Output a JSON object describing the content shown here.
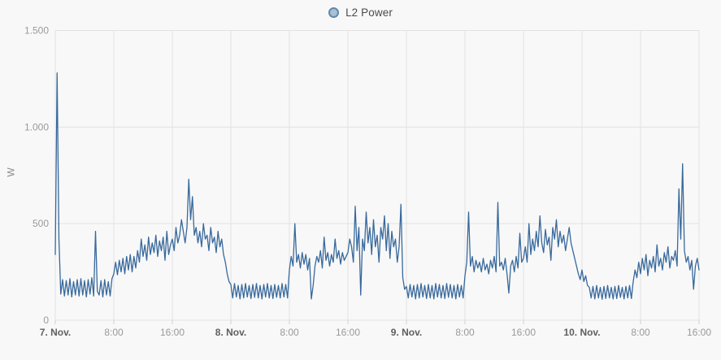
{
  "legend": {
    "marker_fill": "#a9c0d5",
    "marker_border": "#6288ac"
  },
  "colors": {
    "background": "#f8f8f8",
    "grid": "#e2e2e2",
    "tick": "#cfcfcf",
    "y_tick_label": "#9a9a9a",
    "x_time_label": "#999999",
    "x_day_label": "#5f5f5f",
    "series_line": "#38699c"
  },
  "chart_data": {
    "type": "line",
    "title": "L2 Power",
    "xlabel": "",
    "ylabel": "W",
    "ylim": [
      0,
      1500
    ],
    "grid": true,
    "legend_position": "top-center",
    "y_ticks": [
      {
        "value": 0,
        "label": "0"
      },
      {
        "value": 500,
        "label": "500"
      },
      {
        "value": 1000,
        "label": "1.000"
      },
      {
        "value": 1500,
        "label": "1.500"
      }
    ],
    "x_range_hours": [
      0,
      88
    ],
    "x_ticks": [
      {
        "hour": 0,
        "label": "7. Nov.",
        "emphasis": true
      },
      {
        "hour": 8,
        "label": "8:00",
        "emphasis": false
      },
      {
        "hour": 16,
        "label": "16:00",
        "emphasis": false
      },
      {
        "hour": 24,
        "label": "8. Nov.",
        "emphasis": true
      },
      {
        "hour": 32,
        "label": "8:00",
        "emphasis": false
      },
      {
        "hour": 40,
        "label": "16:00",
        "emphasis": false
      },
      {
        "hour": 48,
        "label": "9. Nov.",
        "emphasis": true
      },
      {
        "hour": 56,
        "label": "8:00",
        "emphasis": false
      },
      {
        "hour": 64,
        "label": "16:00",
        "emphasis": false
      },
      {
        "hour": 72,
        "label": "10. Nov.",
        "emphasis": true
      },
      {
        "hour": 80,
        "label": "8:00",
        "emphasis": false
      },
      {
        "hour": 88,
        "label": "16:00",
        "emphasis": false
      }
    ],
    "series": [
      {
        "name": "L2 Power",
        "unit": "W",
        "color": "#38699c",
        "x_start_hours": 0,
        "interval_hours": 0.25,
        "values_w": [
          340,
          1280,
          420,
          135,
          210,
          125,
          205,
          130,
          215,
          120,
          200,
          130,
          210,
          125,
          215,
          130,
          205,
          120,
          210,
          135,
          220,
          125,
          460,
          150,
          130,
          205,
          120,
          210,
          130,
          200,
          125,
          215,
          240,
          300,
          235,
          310,
          250,
          320,
          240,
          330,
          260,
          340,
          250,
          330,
          270,
          360,
          300,
          420,
          330,
          390,
          310,
          430,
          340,
          400,
          350,
          440,
          330,
          410,
          360,
          430,
          310,
          460,
          340,
          390,
          420,
          360,
          480,
          400,
          440,
          520,
          460,
          400,
          480,
          730,
          520,
          640,
          440,
          480,
          400,
          460,
          380,
          500,
          420,
          440,
          360,
          480,
          400,
          430,
          350,
          460,
          380,
          420,
          340,
          300,
          240,
          200,
          185,
          115,
          190,
          120,
          180,
          110,
          185,
          115,
          190,
          120,
          180,
          112,
          185,
          118,
          190,
          115,
          180,
          110,
          185,
          120,
          190,
          115,
          180,
          112,
          185,
          118,
          180,
          115,
          190,
          120,
          185,
          115,
          260,
          330,
          280,
          500,
          300,
          340,
          270,
          350,
          290,
          340,
          260,
          320,
          110,
          180,
          280,
          330,
          300,
          360,
          270,
          430,
          310,
          350,
          280,
          340,
          300,
          420,
          320,
          360,
          290,
          350,
          310,
          330,
          350,
          420,
          380,
          300,
          590,
          360,
          480,
          130,
          420,
          360,
          560,
          400,
          480,
          340,
          520,
          380,
          440,
          300,
          480,
          420,
          540,
          360,
          500,
          320,
          460,
          380,
          420,
          300,
          380,
          600,
          220,
          160,
          175,
          115,
          185,
          120,
          180,
          110,
          185,
          115,
          190,
          120,
          180,
          112,
          185,
          115,
          180,
          110,
          190,
          120,
          185,
          115,
          180,
          112,
          190,
          118,
          185,
          115,
          180,
          110,
          185,
          120,
          180,
          115,
          230,
          300,
          560,
          280,
          330,
          250,
          310,
          270,
          300,
          250,
          320,
          260,
          290,
          240,
          310,
          270,
          330,
          250,
          610,
          280,
          300,
          260,
          320,
          240,
          140,
          280,
          310,
          250,
          330,
          270,
          450,
          300,
          320,
          380,
          300,
          500,
          340,
          420,
          360,
          460,
          380,
          540,
          400,
          350,
          470,
          390,
          430,
          310,
          480,
          420,
          520,
          380,
          460,
          400,
          440,
          360,
          420,
          480,
          400,
          360,
          320,
          280,
          240,
          210,
          260,
          200,
          230,
          180,
          170,
          115,
          175,
          110,
          180,
          115,
          170,
          108,
          175,
          112,
          180,
          115,
          170,
          110,
          175,
          112,
          180,
          118,
          170,
          110,
          175,
          115,
          180,
          112,
          200,
          260,
          220,
          300,
          240,
          320,
          260,
          340,
          230,
          310,
          270,
          330,
          250,
          390,
          280,
          320,
          260,
          350,
          300,
          380,
          270,
          330,
          310,
          360,
          280,
          680,
          420,
          810,
          360,
          300,
          330,
          260,
          310,
          160,
          280,
          320,
          260
        ]
      }
    ]
  }
}
